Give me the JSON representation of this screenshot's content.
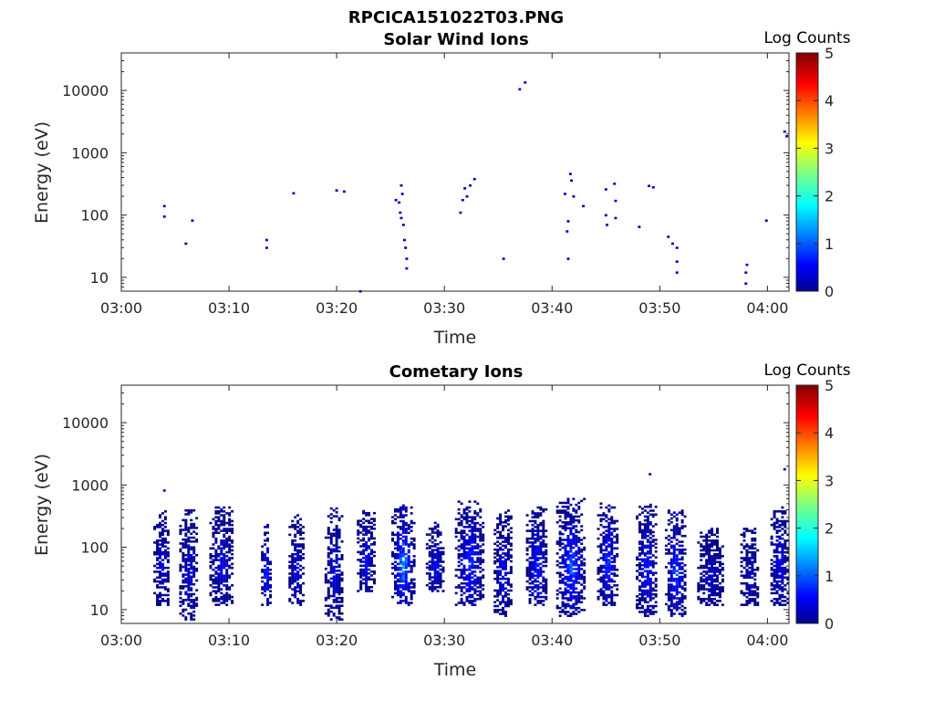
{
  "figure": {
    "filename": "RPCICA151022T03.PNG",
    "colorbar_label": "Log Counts",
    "colormap": "jet",
    "colorbar_ticks": [
      "0",
      "1",
      "2",
      "3",
      "4",
      "5"
    ]
  },
  "chart_data": [
    {
      "type": "heatmap",
      "title": "Solar Wind Ions",
      "xlabel": "Time",
      "ylabel": "Energy (eV)",
      "x_range": [
        "03:00",
        "04:02"
      ],
      "ylim": [
        6,
        40000
      ],
      "y_scale": "log",
      "x_ticks": [
        "03:00",
        "03:10",
        "03:20",
        "03:30",
        "03:40",
        "03:50",
        "04:00"
      ],
      "y_ticks": [
        "10",
        "100",
        "1000",
        "10000"
      ],
      "colorbar": {
        "label": "Log Counts",
        "range": [
          0,
          5
        ]
      },
      "cells": [
        [
          4.0,
          140,
          0.3
        ],
        [
          4.0,
          95,
          0.3
        ],
        [
          6.0,
          35,
          0.3
        ],
        [
          6.6,
          82,
          0.3
        ],
        [
          13.5,
          40,
          0.3
        ],
        [
          13.5,
          30,
          0.3
        ],
        [
          16.0,
          225,
          0.3
        ],
        [
          20.0,
          250,
          0.3
        ],
        [
          20.7,
          240,
          0.3
        ],
        [
          22.2,
          6,
          0.3
        ],
        [
          25.5,
          175,
          0.3
        ],
        [
          25.8,
          160,
          0.3
        ],
        [
          25.9,
          110,
          0.3
        ],
        [
          26.0,
          90,
          0.3
        ],
        [
          26.0,
          300,
          0.3
        ],
        [
          26.1,
          220,
          0.3
        ],
        [
          26.2,
          70,
          0.3
        ],
        [
          26.3,
          40,
          0.3
        ],
        [
          26.4,
          30,
          0.3
        ],
        [
          26.5,
          20,
          0.3
        ],
        [
          26.5,
          14,
          0.3
        ],
        [
          31.5,
          110,
          0.3
        ],
        [
          31.7,
          175,
          0.3
        ],
        [
          31.9,
          270,
          0.3
        ],
        [
          32.1,
          200,
          0.3
        ],
        [
          32.4,
          300,
          0.3
        ],
        [
          32.8,
          380,
          0.3
        ],
        [
          35.5,
          20,
          0.3
        ],
        [
          37.0,
          10500,
          0.3
        ],
        [
          37.5,
          13500,
          0.3
        ],
        [
          41.2,
          220,
          0.3
        ],
        [
          41.4,
          55,
          0.3
        ],
        [
          41.5,
          80,
          0.3
        ],
        [
          41.5,
          20,
          0.3
        ],
        [
          41.7,
          460,
          0.3
        ],
        [
          41.8,
          360,
          0.3
        ],
        [
          42.0,
          200,
          0.3
        ],
        [
          42.9,
          140,
          0.3
        ],
        [
          45.0,
          260,
          0.3
        ],
        [
          45.0,
          100,
          0.3
        ],
        [
          45.1,
          70,
          0.3
        ],
        [
          45.8,
          320,
          0.3
        ],
        [
          45.9,
          170,
          0.3
        ],
        [
          45.9,
          90,
          0.3
        ],
        [
          48.1,
          65,
          0.3
        ],
        [
          49.0,
          295,
          0.3
        ],
        [
          49.4,
          280,
          0.3
        ],
        [
          50.8,
          45,
          0.3
        ],
        [
          51.2,
          35,
          0.3
        ],
        [
          51.6,
          30,
          0.3
        ],
        [
          51.6,
          18,
          0.3
        ],
        [
          51.6,
          12,
          0.3
        ],
        [
          58.0,
          12,
          0.3
        ],
        [
          58.0,
          8,
          0.3
        ],
        [
          58.1,
          16,
          0.3
        ],
        [
          59.9,
          82,
          0.3
        ],
        [
          61.6,
          2200,
          0.3
        ],
        [
          61.8,
          1850,
          0.3
        ]
      ]
    },
    {
      "type": "heatmap",
      "title": "Cometary Ions",
      "xlabel": "Time",
      "ylabel": "Energy (eV)",
      "x_range": [
        "03:00",
        "04:02"
      ],
      "ylim": [
        6,
        40000
      ],
      "y_scale": "log",
      "x_ticks": [
        "03:00",
        "03:10",
        "03:20",
        "03:30",
        "03:40",
        "03:50",
        "04:00"
      ],
      "y_ticks": [
        "10",
        "100",
        "1000",
        "10000"
      ],
      "colorbar": {
        "label": "Log Counts",
        "range": [
          0,
          5
        ]
      },
      "bursts": [
        {
          "t": 3.8,
          "w": 1.4,
          "e_lo": 12,
          "e_hi": 400,
          "peak": 0.6
        },
        {
          "t": 6.3,
          "w": 1.6,
          "e_lo": 7,
          "e_hi": 400,
          "peak": 0.5
        },
        {
          "t": 9.4,
          "w": 2.2,
          "e_lo": 12,
          "e_hi": 450,
          "peak": 0.6
        },
        {
          "t": 13.5,
          "w": 0.8,
          "e_lo": 12,
          "e_hi": 250,
          "peak": 1.3
        },
        {
          "t": 16.3,
          "w": 1.3,
          "e_lo": 12,
          "e_hi": 350,
          "peak": 0.6
        },
        {
          "t": 19.8,
          "w": 1.6,
          "e_lo": 7,
          "e_hi": 450,
          "peak": 0.6
        },
        {
          "t": 22.8,
          "w": 1.6,
          "e_lo": 20,
          "e_hi": 400,
          "peak": 0.7
        },
        {
          "t": 26.2,
          "w": 2.0,
          "e_lo": 12,
          "e_hi": 480,
          "peak": 1.6
        },
        {
          "t": 29.2,
          "w": 1.6,
          "e_lo": 20,
          "e_hi": 250,
          "peak": 0.7
        },
        {
          "t": 32.4,
          "w": 2.6,
          "e_lo": 12,
          "e_hi": 550,
          "peak": 1.0
        },
        {
          "t": 35.5,
          "w": 1.6,
          "e_lo": 8,
          "e_hi": 400,
          "peak": 0.7
        },
        {
          "t": 38.6,
          "w": 1.8,
          "e_lo": 12,
          "e_hi": 450,
          "peak": 0.9
        },
        {
          "t": 41.8,
          "w": 2.6,
          "e_lo": 8,
          "e_hi": 600,
          "peak": 1.2
        },
        {
          "t": 45.2,
          "w": 1.8,
          "e_lo": 12,
          "e_hi": 550,
          "peak": 1.0
        },
        {
          "t": 48.8,
          "w": 1.8,
          "e_lo": 8,
          "e_hi": 500,
          "peak": 0.9
        },
        {
          "t": 51.5,
          "w": 1.8,
          "e_lo": 8,
          "e_hi": 400,
          "peak": 1.1
        },
        {
          "t": 54.8,
          "w": 2.4,
          "e_lo": 12,
          "e_hi": 200,
          "peak": 0.4
        },
        {
          "t": 58.4,
          "w": 1.6,
          "e_lo": 12,
          "e_hi": 200,
          "peak": 0.4
        },
        {
          "t": 61.2,
          "w": 1.6,
          "e_lo": 12,
          "e_hi": 450,
          "peak": 0.7
        }
      ],
      "isolated_cells": [
        [
          4.0,
          820,
          0.3
        ],
        [
          49.1,
          1500,
          0.3
        ],
        [
          61.6,
          1800,
          0.3
        ]
      ]
    }
  ]
}
